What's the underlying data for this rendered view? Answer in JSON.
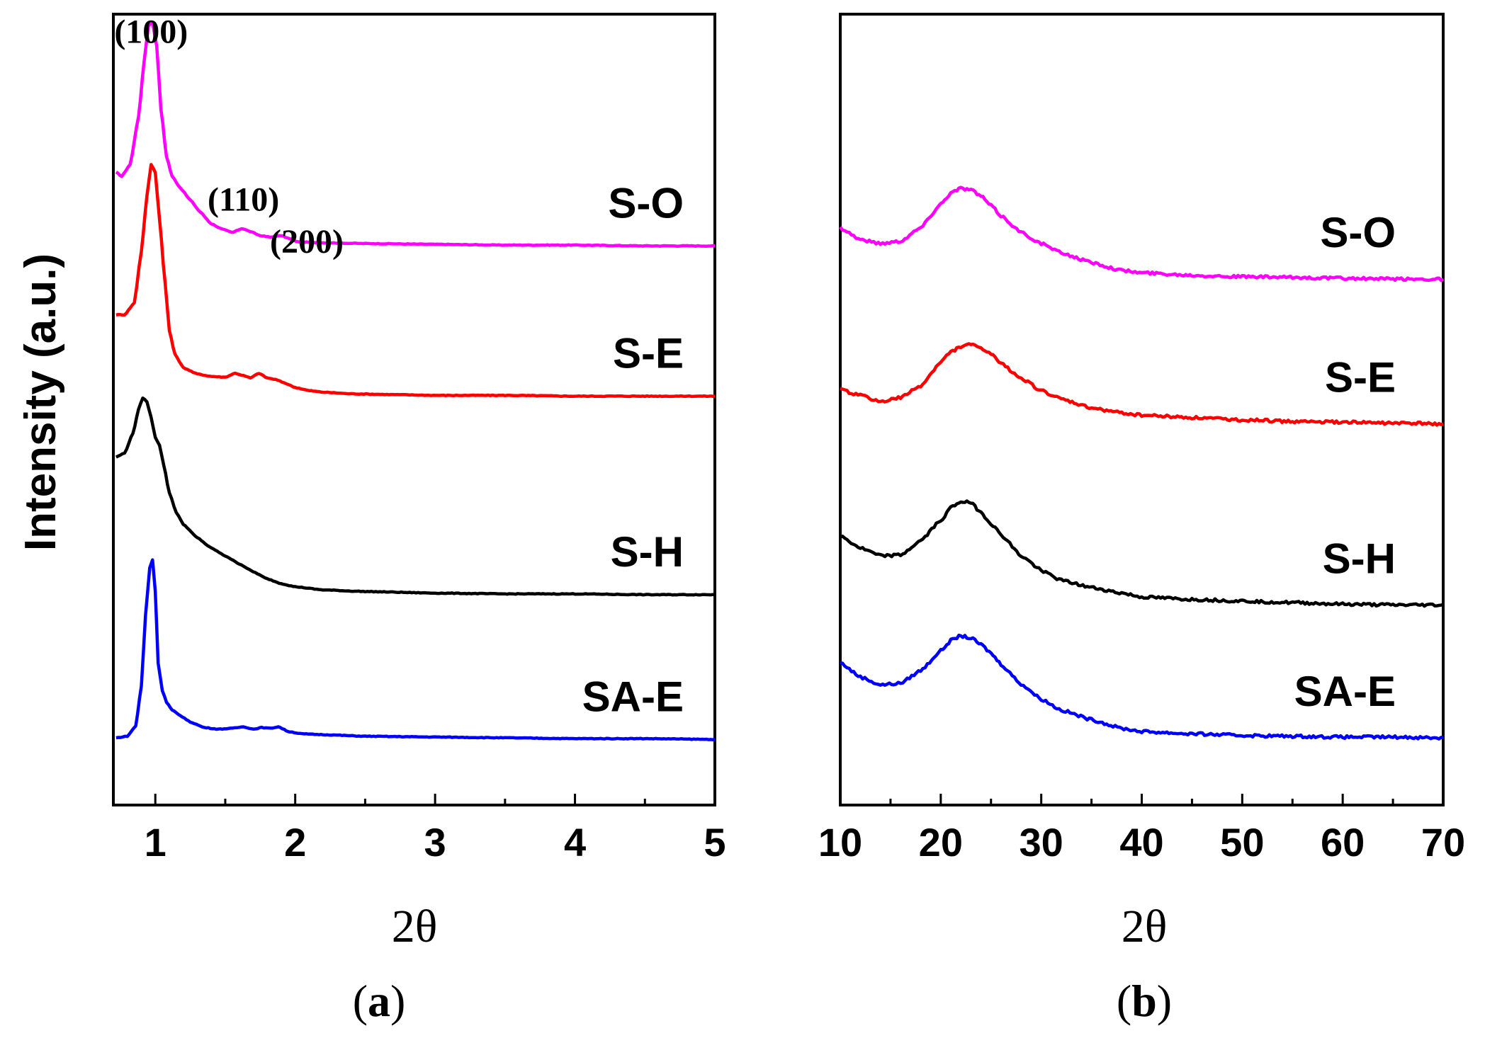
{
  "chart_data": [
    {
      "type": "line",
      "panel": "(a)",
      "panel_letter": "a",
      "xlabel": "2θ",
      "ylabel": "Intensity (a.u.)",
      "xlim": [
        0.7,
        5
      ],
      "ylim": [
        0,
        100
      ],
      "xticks": [
        1,
        2,
        3,
        4,
        5
      ],
      "xtick_labels": [
        "1",
        "2",
        "3",
        "4",
        "5"
      ],
      "yticks_shown": false,
      "annotations": [
        {
          "text": "(100)",
          "x": 0.97,
          "y": 96
        },
        {
          "text": "(110)",
          "x": 1.63,
          "y": 75
        },
        {
          "text": "(200)",
          "x": 1.88,
          "y": 70
        }
      ],
      "series": [
        {
          "name": "S-O",
          "color": "#ff00ff",
          "label": "S-O",
          "x": [
            0.72,
            0.76,
            0.82,
            0.88,
            0.92,
            0.95,
            0.98,
            1.01,
            1.04,
            1.08,
            1.12,
            1.18,
            1.25,
            1.32,
            1.4,
            1.48,
            1.55,
            1.62,
            1.68,
            1.75,
            1.82,
            1.9,
            1.96,
            2.02,
            2.2,
            2.5,
            3.0,
            3.5,
            4.0,
            4.5,
            5.0
          ],
          "y": [
            80,
            79.5,
            81,
            87,
            94,
            98.5,
            99,
            96,
            88,
            82,
            79.5,
            78,
            76.5,
            75,
            73.5,
            72.8,
            72.4,
            72.9,
            72.5,
            72,
            71.8,
            72,
            71.6,
            71.2,
            71.1,
            71,
            70.9,
            70.8,
            70.8,
            70.7,
            70.7
          ]
        },
        {
          "name": "S-E",
          "color": "#ff0000",
          "label": "S-E",
          "x": [
            0.72,
            0.78,
            0.85,
            0.9,
            0.94,
            0.97,
            1.0,
            1.03,
            1.07,
            1.1,
            1.14,
            1.2,
            1.3,
            1.4,
            1.5,
            1.57,
            1.63,
            1.68,
            1.74,
            1.8,
            1.86,
            1.92,
            2.0,
            2.1,
            2.2,
            2.4,
            2.7,
            3.0,
            3.5,
            4.0,
            4.5,
            5.0
          ],
          "y": [
            62,
            62,
            63.5,
            70,
            77,
            81,
            80,
            74,
            66,
            60,
            57,
            55.3,
            54.5,
            54.2,
            54.1,
            54.6,
            54.3,
            54,
            54.6,
            54,
            53.8,
            53.4,
            52.8,
            52.4,
            52.2,
            52,
            51.9,
            51.8,
            51.8,
            51.7,
            51.7,
            51.7
          ]
        },
        {
          "name": "S-H",
          "color": "#000000",
          "label": "S-H",
          "x": [
            0.72,
            0.78,
            0.84,
            0.88,
            0.91,
            0.94,
            0.97,
            1.0,
            1.03,
            1.06,
            1.1,
            1.15,
            1.2,
            1.3,
            1.4,
            1.5,
            1.6,
            1.7,
            1.8,
            1.9,
            2.0,
            2.2,
            2.5,
            3.0,
            3.5,
            4.0,
            4.5,
            5.0
          ],
          "y": [
            44,
            44.5,
            47,
            50,
            51.5,
            51,
            49,
            46.5,
            45.5,
            43,
            39.5,
            37,
            35.5,
            33.8,
            32.5,
            31.5,
            30.5,
            29.5,
            28.6,
            28,
            27.6,
            27.2,
            27,
            26.8,
            26.7,
            26.7,
            26.6,
            26.6
          ]
        },
        {
          "name": "SA-E",
          "color": "#0000ff",
          "label": "SA-E",
          "x": [
            0.72,
            0.8,
            0.86,
            0.9,
            0.93,
            0.96,
            0.98,
            1.0,
            1.02,
            1.05,
            1.08,
            1.12,
            1.18,
            1.25,
            1.35,
            1.45,
            1.55,
            1.63,
            1.7,
            1.76,
            1.82,
            1.88,
            1.95,
            2.05,
            2.2,
            2.5,
            3.0,
            3.5,
            4.0,
            4.5,
            5.0
          ],
          "y": [
            8.5,
            8.7,
            10,
            15,
            24,
            30,
            31,
            27,
            18,
            14.5,
            13,
            12,
            11.3,
            10.5,
            9.8,
            9.6,
            9.7,
            9.9,
            9.6,
            9.8,
            9.7,
            9.9,
            9.3,
            9,
            8.9,
            8.7,
            8.6,
            8.5,
            8.4,
            8.4,
            8.3
          ]
        }
      ]
    },
    {
      "type": "line",
      "panel": "(b)",
      "panel_letter": "b",
      "xlabel": "2θ",
      "ylabel": "",
      "xlim": [
        10,
        70
      ],
      "ylim": [
        0,
        100
      ],
      "xticks": [
        10,
        20,
        30,
        40,
        50,
        60,
        70
      ],
      "xtick_labels": [
        "10",
        "20",
        "30",
        "40",
        "50",
        "60",
        "70"
      ],
      "yticks_shown": false,
      "series": [
        {
          "name": "S-O",
          "color": "#ff00ff",
          "label": "S-O",
          "x": [
            10,
            12,
            14,
            16,
            18,
            20,
            21,
            22,
            23,
            24,
            25,
            26,
            28,
            30,
            32,
            35,
            38,
            40,
            45,
            50,
            55,
            60,
            65,
            70
          ],
          "y": [
            73,
            71.5,
            71,
            71.3,
            73,
            76,
            77.4,
            78,
            77.8,
            77,
            75.8,
            74.5,
            72.4,
            71,
            69.8,
            68.6,
            67.6,
            67.3,
            67,
            66.8,
            66.7,
            66.6,
            66.5,
            66.5
          ]
        },
        {
          "name": "S-E",
          "color": "#ff0000",
          "label": "S-E",
          "x": [
            10,
            12,
            14,
            16,
            18,
            20,
            21,
            22,
            23,
            24,
            25,
            26,
            28,
            30,
            32,
            35,
            38,
            40,
            45,
            50,
            55,
            60,
            65,
            70
          ],
          "y": [
            52.5,
            51.8,
            51,
            51.5,
            53,
            56,
            57.3,
            58,
            58.2,
            57.8,
            57,
            55.8,
            54,
            52.4,
            51.3,
            50.2,
            49.6,
            49.3,
            49,
            48.7,
            48.5,
            48.4,
            48.3,
            48.2
          ]
        },
        {
          "name": "S-H",
          "color": "#000000",
          "label": "S-H",
          "x": [
            10,
            12,
            14,
            16,
            18,
            20,
            21,
            22,
            23,
            24,
            25,
            26,
            28,
            30,
            32,
            35,
            38,
            40,
            45,
            50,
            55,
            60,
            65,
            70
          ],
          "y": [
            34,
            32.5,
            31.5,
            31.6,
            33.4,
            36,
            37.6,
            38.4,
            38.2,
            37,
            35.6,
            34.2,
            31.5,
            29.7,
            28.4,
            27.5,
            26.8,
            26.3,
            26,
            25.8,
            25.6,
            25.4,
            25.3,
            25.3
          ]
        },
        {
          "name": "SA-E",
          "color": "#0000ff",
          "label": "SA-E",
          "x": [
            10,
            12,
            14,
            16,
            18,
            20,
            21,
            22,
            23,
            24,
            25,
            26,
            28,
            30,
            32,
            35,
            38,
            40,
            45,
            50,
            55,
            60,
            65,
            70
          ],
          "y": [
            18,
            16.2,
            15.2,
            15.4,
            17,
            19.5,
            20.8,
            21.4,
            21.1,
            20.3,
            19.2,
            17.8,
            15.3,
            13.4,
            12,
            10.8,
            9.7,
            9.3,
            9,
            8.8,
            8.7,
            8.6,
            8.6,
            8.5
          ]
        }
      ]
    }
  ]
}
